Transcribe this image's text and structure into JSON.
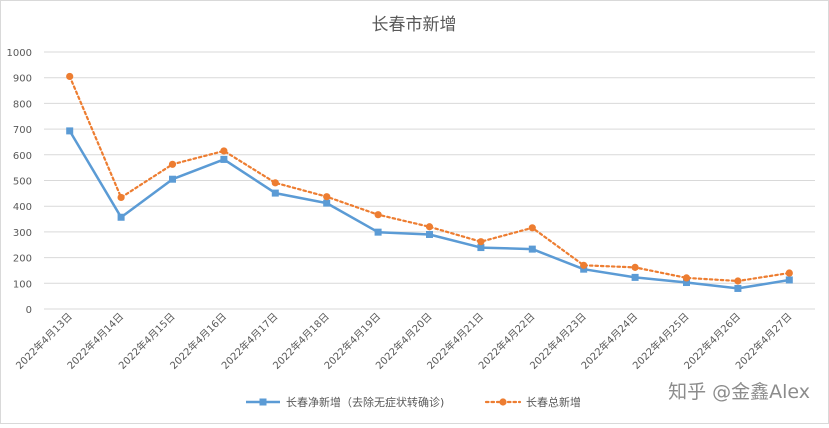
{
  "chart_data": {
    "type": "line",
    "title": "长春市新增",
    "xlabel": "",
    "ylabel": "",
    "ylim": [
      0,
      1000
    ],
    "yticks": [
      0,
      100,
      200,
      300,
      400,
      500,
      600,
      700,
      800,
      900,
      1000
    ],
    "grid": true,
    "legend_position": "bottom",
    "categories": [
      "2022年4月13日",
      "2022年4月14日",
      "2022年4月15日",
      "2022年4月16日",
      "2022年4月17日",
      "2022年4月18日",
      "2022年4月19日",
      "2022年4月20日",
      "2022年4月21日",
      "2022年4月22日",
      "2022年4月23日",
      "2022年4月24日",
      "2022年4月25日",
      "2022年4月26日",
      "2022年4月27日"
    ],
    "series": [
      {
        "name": "长春净新增（去除无症状转确诊)",
        "color": "#5b9bd5",
        "style": "solid",
        "marker": "square",
        "values": [
          693,
          357,
          505,
          582,
          451,
          412,
          299,
          290,
          239,
          233,
          155,
          123,
          103,
          80,
          113
        ]
      },
      {
        "name": "长春总新增",
        "color": "#ed7d31",
        "style": "dotted",
        "marker": "circle",
        "values": [
          905,
          434,
          563,
          615,
          491,
          437,
          367,
          320,
          262,
          316,
          170,
          162,
          121,
          109,
          140
        ]
      }
    ]
  },
  "watermark": "知乎 @金鑫Alex"
}
